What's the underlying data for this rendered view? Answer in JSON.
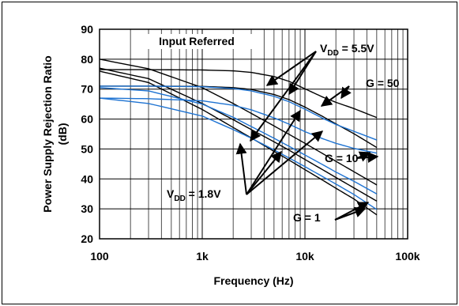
{
  "chart_data": {
    "type": "line",
    "title": "",
    "xlabel": "Frequency (Hz)",
    "ylabel_line1": "Power Supply Rejection Ratio",
    "ylabel_line2": "(dB)",
    "x_scale": "log",
    "xlim": [
      100,
      100000
    ],
    "ylim": [
      20,
      90
    ],
    "grid": true,
    "x_ticks": [
      {
        "value": 100,
        "label": "100"
      },
      {
        "value": 1000,
        "label": "1k"
      },
      {
        "value": 10000,
        "label": "10k"
      },
      {
        "value": 100000,
        "label": "100k"
      }
    ],
    "y_ticks": [
      20,
      30,
      40,
      50,
      60,
      70,
      80,
      90
    ],
    "colors": {
      "vdd55": "#000000",
      "vdd18": "#1e73d2"
    },
    "series": [
      {
        "group": "vdd55",
        "color": "#000000",
        "x": [
          100,
          300,
          1000,
          2000,
          3000,
          5000,
          7000,
          10000,
          15000,
          20000,
          30000,
          50000
        ],
        "y": [
          76.5,
          76.5,
          76.4,
          76.1,
          75.6,
          74.2,
          72.6,
          70.1,
          67.3,
          65.6,
          63.5,
          60.5
        ]
      },
      {
        "group": "vdd55",
        "color": "#000000",
        "x": [
          100,
          300,
          1000,
          2000,
          3000,
          5000,
          7000,
          10000,
          15000,
          20000,
          30000,
          50000
        ],
        "y": [
          71,
          71,
          70.9,
          70.5,
          69.9,
          68.2,
          66.5,
          64,
          60.8,
          58.4,
          55.1,
          50.5
        ]
      },
      {
        "group": "vdd55",
        "color": "#000000",
        "x": [
          100,
          300,
          1000,
          2000,
          3000,
          5000,
          7000,
          10000,
          15000,
          20000,
          30000,
          50000
        ],
        "y": [
          80,
          76.8,
          70.5,
          65.2,
          61.9,
          57.7,
          54.9,
          51.9,
          48.4,
          45.9,
          42.4,
          38
        ]
      },
      {
        "group": "vdd55",
        "color": "#000000",
        "x": [
          100,
          300,
          1000,
          2000,
          3000,
          5000,
          7000,
          10000,
          15000,
          20000,
          30000,
          50000
        ],
        "y": [
          77,
          73.5,
          65.2,
          59.8,
          56.5,
          52.4,
          49.6,
          46.5,
          43,
          40.5,
          37,
          32.6
        ]
      },
      {
        "group": "vdd55",
        "color": "#000000",
        "x": [
          100,
          300,
          1000,
          2000,
          3000,
          5000,
          7000,
          10000,
          15000,
          20000,
          30000,
          50000
        ],
        "y": [
          76,
          72.2,
          63.2,
          57.2,
          53.7,
          49.2,
          46.3,
          43.1,
          39.5,
          36.9,
          33.3,
          28
        ]
      },
      {
        "group": "vdd18",
        "color": "#1e73d2",
        "x": [
          100,
          300,
          1000,
          2000,
          3000,
          5000,
          7000,
          10000,
          15000,
          20000,
          30000,
          50000
        ],
        "y": [
          71,
          71,
          70.8,
          70.2,
          69.4,
          67.6,
          65.8,
          63.3,
          60.2,
          58.2,
          55.9,
          53
        ]
      },
      {
        "group": "vdd18",
        "color": "#1e73d2",
        "x": [
          100,
          300,
          1000,
          2000,
          3000,
          5000,
          7000,
          10000,
          15000,
          20000,
          30000,
          50000
        ],
        "y": [
          67,
          66.8,
          66.1,
          64.6,
          63.1,
          60.4,
          58.3,
          55.8,
          53.4,
          51.9,
          50.2,
          48.6
        ]
      },
      {
        "group": "vdd18",
        "color": "#1e73d2",
        "x": [
          100,
          300,
          1000,
          2000,
          3000,
          5000,
          7000,
          10000,
          15000,
          20000,
          30000,
          50000
        ],
        "y": [
          70.5,
          69.4,
          65,
          60.6,
          57.5,
          53.6,
          50.9,
          48,
          44.7,
          42.3,
          39.2,
          35
        ]
      },
      {
        "group": "vdd18",
        "color": "#1e73d2",
        "x": [
          100,
          300,
          1000,
          2000,
          3000,
          5000,
          7000,
          10000,
          15000,
          20000,
          30000,
          50000
        ],
        "y": [
          67,
          65.2,
          61,
          56.5,
          53.6,
          49.7,
          47,
          44.1,
          40.7,
          38.3,
          34.8,
          29.8
        ]
      }
    ],
    "annotations": [
      {
        "id": "input-referred",
        "text": "Input Referred"
      },
      {
        "id": "vdd55",
        "base": "V",
        "sub": "DD",
        "rest": " = 5.5V"
      },
      {
        "id": "g50",
        "text": "G = 50"
      },
      {
        "id": "g10",
        "text": "G = 10"
      },
      {
        "id": "vdd18",
        "base": "V",
        "sub": "DD",
        "rest": " = 1.8V"
      },
      {
        "id": "g1",
        "text": "G = 1"
      }
    ]
  }
}
